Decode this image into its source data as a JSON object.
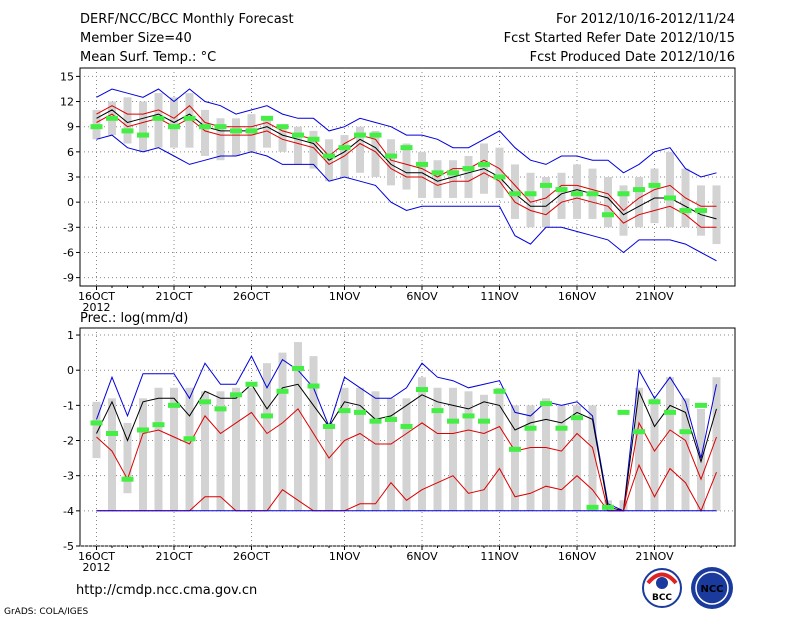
{
  "header": {
    "title": "DERF/NCC/BCC Monthly Forecast",
    "member_size": "Member Size=40",
    "variable": "Mean Surf. Temp.: °C",
    "period": "For 2012/10/16-2012/11/24",
    "started": "Fcst Started Refer Date 2012/10/15",
    "produced": "Fcst Produced Date 2012/10/16"
  },
  "footer": {
    "url": "http://cmdp.ncc.cma.gov.cn",
    "grads": "GrADS: COLA/IGES",
    "logo_bcc_text": "BCC",
    "logo_ncc_text": "NCC"
  },
  "colors": {
    "box": "#d3d3d3",
    "mean": "#000000",
    "inner": "#dd0000",
    "outer": "#0000dd",
    "obs": "#44ee44",
    "grid": "#888888"
  },
  "chart_data": [
    {
      "type": "box-line",
      "title": "",
      "ylabel": "Mean Surf. Temp.: °C",
      "ylim": [
        -10,
        16
      ],
      "yticks": [
        15,
        12,
        9,
        6,
        3,
        0,
        -3,
        -6,
        -9
      ],
      "xticks": [
        {
          "day": 0,
          "label": "16OCT"
        },
        {
          "day": 5,
          "label": "21OCT"
        },
        {
          "day": 10,
          "label": "26OCT"
        },
        {
          "day": 16,
          "label": "1NOV"
        },
        {
          "day": 21,
          "label": "6NOV"
        },
        {
          "day": 26,
          "label": "11NOV"
        },
        {
          "day": 31,
          "label": "16NOV"
        },
        {
          "day": 36,
          "label": "21NOV"
        }
      ],
      "year_label": "2012",
      "box_top": [
        11,
        12,
        12.5,
        12,
        13,
        12.5,
        13,
        11,
        10,
        10,
        10.5,
        10,
        9,
        9,
        8.5,
        7.5,
        8,
        9,
        8.5,
        7.5,
        7,
        6,
        5,
        5,
        5.5,
        7,
        6.5,
        4.5,
        3.5,
        3,
        3.5,
        4.5,
        4,
        3,
        2,
        3,
        4,
        6,
        4,
        2,
        2
      ],
      "box_bottom": [
        7.5,
        8,
        7,
        6,
        6.5,
        6.5,
        6.5,
        5.5,
        5,
        5.5,
        6,
        6.5,
        6,
        4.5,
        4,
        2.5,
        3,
        3.5,
        3,
        2,
        1.5,
        0.5,
        0.5,
        0.5,
        0.5,
        1,
        0.5,
        -2,
        -3,
        -3,
        -2,
        -2,
        -2,
        -3,
        -4,
        -3,
        -2.5,
        -3,
        -3,
        -4,
        -5
      ],
      "series": [
        {
          "name": "outer-upper",
          "color": "outer",
          "values": [
            12.5,
            13.5,
            13,
            12.5,
            13.5,
            12,
            13.5,
            12,
            11.5,
            10.5,
            11,
            11.5,
            10.5,
            10,
            10,
            8.5,
            9,
            10,
            9.5,
            9,
            8,
            8,
            7.5,
            6.5,
            6.5,
            7.5,
            8.5,
            6.5,
            5,
            4.5,
            5.5,
            5.5,
            5,
            5,
            3.5,
            4.5,
            6,
            6.5,
            4,
            3,
            3.5
          ]
        },
        {
          "name": "inner-upper",
          "color": "inner",
          "values": [
            10.5,
            11.5,
            10.5,
            10.5,
            11,
            10,
            11.5,
            9.5,
            9,
            9,
            9,
            9.5,
            8.5,
            8,
            7.5,
            5.5,
            7,
            8,
            7.5,
            5,
            4.5,
            4,
            3,
            4,
            4,
            5,
            4,
            2,
            0,
            0.5,
            2,
            2,
            1.5,
            1,
            -1,
            0.5,
            1.5,
            2,
            0.5,
            -0.5,
            -0.5
          ]
        },
        {
          "name": "ensemble-mean",
          "color": "mean",
          "values": [
            10,
            11,
            9.5,
            10,
            10.5,
            9.5,
            10.5,
            9,
            8.5,
            8.5,
            8.5,
            9,
            8,
            7.5,
            7,
            5,
            6,
            7.5,
            6.5,
            4.5,
            3.5,
            3.5,
            2.5,
            3,
            3.5,
            4,
            3,
            1,
            -0.5,
            -0.5,
            1,
            1.5,
            1,
            0.5,
            -1.5,
            -0.5,
            0.5,
            0.5,
            -0.5,
            -1.5,
            -2
          ]
        },
        {
          "name": "inner-lower",
          "color": "inner",
          "values": [
            9.5,
            10.5,
            9,
            9.5,
            10,
            9,
            10,
            8.5,
            8,
            8,
            8,
            8.5,
            7.5,
            7,
            6.5,
            4.5,
            5.5,
            7,
            6,
            4,
            3,
            3,
            2,
            2.5,
            2.5,
            3.5,
            2.5,
            0,
            -1,
            -1.5,
            0,
            0.5,
            0,
            -0.5,
            -2.5,
            -1.5,
            -1,
            -0.5,
            -1.5,
            -3,
            -3
          ]
        },
        {
          "name": "outer-lower",
          "color": "outer",
          "values": [
            7.5,
            8,
            6.5,
            6,
            6.5,
            5.5,
            4.5,
            5,
            5.5,
            5.5,
            6,
            5.5,
            4.5,
            4.5,
            4.5,
            2.5,
            3,
            2.5,
            2,
            0,
            -1,
            -0.5,
            -0.5,
            -0.5,
            -0.5,
            -0.5,
            -0.5,
            -4,
            -5,
            -3,
            -3,
            -3.5,
            -4,
            -4.5,
            -6,
            -4.5,
            -4.5,
            -4.5,
            -5,
            -6,
            -7
          ]
        }
      ],
      "observed": [
        9,
        10,
        8.5,
        8,
        10,
        9,
        10,
        9,
        9,
        8.5,
        8.5,
        10,
        9,
        8,
        7.5,
        5.5,
        6.5,
        8,
        8,
        5.5,
        6.5,
        4.5,
        3.5,
        3.5,
        4,
        4.5,
        3,
        1,
        1,
        2,
        1.5,
        1,
        1,
        -1.5,
        1,
        1.5,
        2,
        0.5,
        -1,
        -1
      ],
      "box_days": [
        0,
        1,
        2,
        3,
        4,
        5,
        6,
        7,
        8,
        9,
        10,
        11,
        12,
        13,
        14,
        15,
        16,
        17,
        18,
        19,
        20,
        21,
        22,
        23,
        24,
        25,
        26,
        27,
        28,
        29,
        30,
        31,
        32,
        33,
        34,
        35,
        36,
        37,
        38,
        39,
        40
      ]
    },
    {
      "type": "box-line",
      "title": "Prec.: log(mm/d)",
      "ylabel": "Prec.: log(mm/d)",
      "ylim": [
        -5,
        1.2
      ],
      "yticks": [
        1,
        0,
        -1,
        -2,
        -3,
        -4,
        -5
      ],
      "xticks": [
        {
          "day": 0,
          "label": "16OCT"
        },
        {
          "day": 5,
          "label": "21OCT"
        },
        {
          "day": 10,
          "label": "26OCT"
        },
        {
          "day": 16,
          "label": "1NOV"
        },
        {
          "day": 21,
          "label": "6NOV"
        },
        {
          "day": 26,
          "label": "11NOV"
        },
        {
          "day": 31,
          "label": "16NOV"
        },
        {
          "day": 36,
          "label": "21NOV"
        }
      ],
      "year_label": "2012",
      "box_top": [
        -0.9,
        -0.8,
        -1.5,
        -0.8,
        -0.5,
        -0.5,
        -0.5,
        -0.6,
        -0.6,
        -0.5,
        -0.5,
        0.2,
        0.5,
        0.8,
        0.4,
        -1.5,
        -0.5,
        -0.5,
        -0.6,
        -0.8,
        -0.8,
        -0.2,
        -0.5,
        -0.5,
        -0.6,
        -0.7,
        -0.5,
        -1,
        -1,
        -0.8,
        -1,
        -1,
        -1,
        -3.7,
        -3.7,
        -0.5,
        -0.8,
        -0.2,
        -0.8,
        -1.1,
        -0.2
      ],
      "box_bottom": [
        -2.5,
        -4,
        -3.5,
        -4,
        -4,
        -4,
        -4,
        -4,
        -4,
        -4,
        -4,
        -4,
        -4,
        -4,
        -4,
        -4,
        -4,
        -4,
        -4,
        -4,
        -4,
        -4,
        -4,
        -4,
        -4,
        -4,
        -4,
        -4,
        -4,
        -4,
        -4,
        -4,
        -4,
        -4,
        -4,
        -4,
        -4,
        -4,
        -4,
        -4,
        -4
      ],
      "series": [
        {
          "name": "outer-upper",
          "color": "outer",
          "values": [
            -1.4,
            -0.2,
            -1.3,
            -0.1,
            -0.1,
            -0.1,
            -0.8,
            0.2,
            -0.4,
            -0.4,
            0.4,
            -0.5,
            0.3,
            0,
            -0.5,
            -1.6,
            -0.2,
            -0.5,
            -0.8,
            -0.8,
            -0.5,
            0.2,
            -0.2,
            -0.3,
            -0.5,
            -0.4,
            -0.3,
            -1.2,
            -1.3,
            -0.9,
            -1,
            -0.9,
            -1.3,
            -3.8,
            -4,
            0,
            -0.8,
            -0.2,
            -0.9,
            -2.5,
            -0.4
          ]
        },
        {
          "name": "ensemble-mean",
          "color": "mean",
          "values": [
            -1.8,
            -0.9,
            -2,
            -0.9,
            -0.8,
            -0.8,
            -1.3,
            -0.6,
            -0.8,
            -0.8,
            -0.4,
            -1.1,
            -0.5,
            -0.4,
            -1,
            -1.6,
            -0.9,
            -1,
            -1.4,
            -1.3,
            -1,
            -0.7,
            -0.9,
            -1,
            -1.1,
            -0.9,
            -1,
            -1.7,
            -1.5,
            -1.4,
            -1.5,
            -1.2,
            -1.4,
            -3.9,
            -4,
            -0.6,
            -1.6,
            -1,
            -1.2,
            -2.6,
            -1.1
          ]
        },
        {
          "name": "inner-upper",
          "color": "inner",
          "values": [
            -1.9,
            -2.3,
            -3.1,
            -1.8,
            -1.7,
            -1.9,
            -2.1,
            -1.3,
            -1.8,
            -1.5,
            -1.2,
            -1.8,
            -1.5,
            -1.1,
            -1.8,
            -2.5,
            -2,
            -1.8,
            -2.1,
            -2.1,
            -1.8,
            -1.5,
            -1.8,
            -1.8,
            -1.7,
            -1.8,
            -1.6,
            -2.3,
            -2.2,
            -2.2,
            -2.3,
            -1.8,
            -2.2,
            -4,
            -4,
            -1.5,
            -2.3,
            -1.7,
            -2,
            -3.1,
            -1.9
          ]
        },
        {
          "name": "inner-lower",
          "color": "inner",
          "values": [
            -4,
            -4,
            -4,
            -4,
            -4,
            -4,
            -4,
            -3.6,
            -3.6,
            -4,
            -4,
            -4,
            -3.4,
            -3.7,
            -4,
            -4,
            -4,
            -3.8,
            -3.8,
            -3.2,
            -3.7,
            -3.4,
            -3.2,
            -3,
            -3.5,
            -3.4,
            -2.8,
            -3.6,
            -3.5,
            -3.3,
            -3.4,
            -3,
            -3.4,
            -4,
            -4,
            -2.7,
            -3.6,
            -2.8,
            -3.2,
            -4,
            -2.9
          ]
        },
        {
          "name": "outer-lower",
          "color": "outer",
          "values": [
            -4,
            -4,
            -4,
            -4,
            -4,
            -4,
            -4,
            -4,
            -4,
            -4,
            -4,
            -4,
            -4,
            -4,
            -4,
            -4,
            -4,
            -4,
            -4,
            -4,
            -4,
            -4,
            -4,
            -4,
            -4,
            -4,
            -4,
            -4,
            -4,
            -4,
            -4,
            -4,
            -4,
            -4,
            -4,
            -4,
            -4,
            -4,
            -4,
            -4,
            -4
          ]
        }
      ],
      "observed": [
        -1.5,
        -1.8,
        -3.1,
        -1.7,
        -1.55,
        -1,
        -1.95,
        -0.9,
        -1.1,
        -0.7,
        -0.4,
        -1.3,
        -0.6,
        0.05,
        -0.45,
        -1.6,
        -1.15,
        -1.2,
        -1.45,
        -1.4,
        -1.6,
        -0.55,
        -1.15,
        -1.45,
        -1.3,
        -1.45,
        -0.6,
        -2.25,
        -1.65,
        -0.95,
        -1.65,
        -1.35,
        -3.9,
        -3.9,
        -1.2,
        -1.75,
        -0.9,
        -1.2,
        -1.75,
        -1
      ],
      "box_days": [
        0,
        1,
        2,
        3,
        4,
        5,
        6,
        7,
        8,
        9,
        10,
        11,
        12,
        13,
        14,
        15,
        16,
        17,
        18,
        19,
        20,
        21,
        22,
        23,
        24,
        25,
        26,
        27,
        28,
        29,
        30,
        31,
        32,
        33,
        34,
        35,
        36,
        37,
        38,
        39,
        40
      ]
    }
  ]
}
